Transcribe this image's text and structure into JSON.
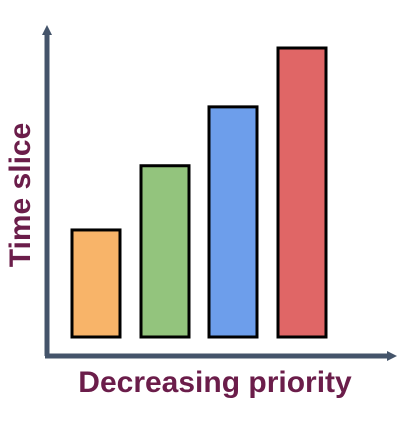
{
  "chart_data": {
    "type": "bar",
    "title": "",
    "xlabel": "Decreasing priority",
    "ylabel": "Time slice",
    "categories": [
      "",
      "",
      "",
      ""
    ],
    "values": [
      1.0,
      1.6,
      2.15,
      2.7
    ],
    "ylim": [
      0,
      3
    ],
    "grid": false,
    "legend": "none",
    "bar_colors": [
      "#f8b469",
      "#93c47d",
      "#6d9eeb",
      "#e06666"
    ],
    "bar_stroke": "#000000",
    "axis_color": "#44546a",
    "label_color": "#6b1d4a"
  }
}
